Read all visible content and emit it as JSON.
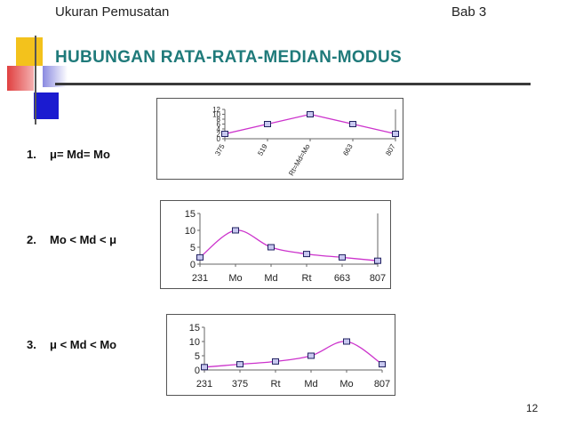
{
  "header": {
    "left": "Ukuran Pemusatan",
    "right": "Bab 3"
  },
  "title": "HUBUNGAN RATA-RATA-MEDIAN-MODUS",
  "items": [
    {
      "num": "1.",
      "text": "μ= Md= Mo"
    },
    {
      "num": "2.",
      "text": "Mo < Md < μ"
    },
    {
      "num": "3.",
      "text": "μ < Md < Mo"
    }
  ],
  "page_number": "12",
  "colors": {
    "line": "#cc33cc",
    "marker_fill": "#c8c8f0",
    "marker_stroke": "#202060",
    "title": "#1f7a7a"
  },
  "chart_data": [
    {
      "type": "line",
      "categories": [
        "375",
        "519",
        "Rt=Md=Mo",
        "663",
        "807"
      ],
      "values": [
        2,
        6,
        10,
        6,
        2
      ],
      "ylim": [
        0,
        12
      ],
      "yticks": [
        "12",
        "10",
        "8",
        "6",
        "4",
        "2",
        "0"
      ],
      "tick_rotation": -60,
      "smooth": false
    },
    {
      "type": "line",
      "categories": [
        "231",
        "Mo",
        "Md",
        "Rt",
        "663",
        "807"
      ],
      "values": [
        2,
        10,
        5,
        3,
        2,
        1
      ],
      "ylim": [
        0,
        15
      ],
      "yticks": [
        "15",
        "10",
        "5",
        "0"
      ],
      "tick_rotation": 0,
      "smooth": true
    },
    {
      "type": "line",
      "categories": [
        "231",
        "375",
        "Rt",
        "Md",
        "Mo",
        "807"
      ],
      "values": [
        1,
        2,
        3,
        5,
        10,
        2
      ],
      "ylim": [
        0,
        15
      ],
      "yticks": [
        "15",
        "10",
        "5",
        "0"
      ],
      "tick_rotation": 0,
      "smooth": true
    }
  ]
}
